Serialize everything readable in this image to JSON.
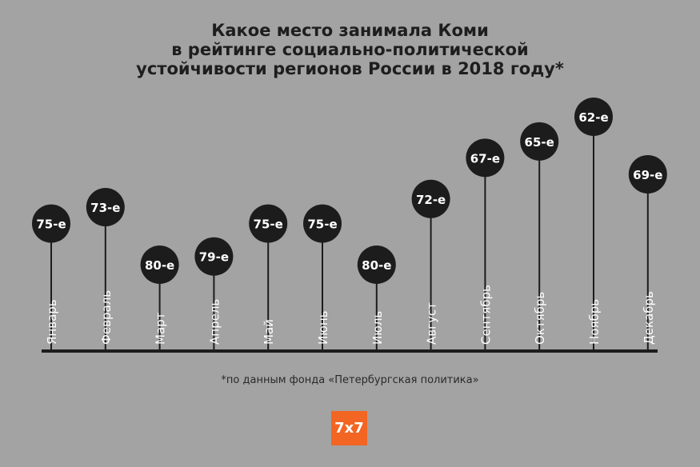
{
  "title_lines": [
    "Какое место занимала Коми",
    "в рейтинге социально-политической",
    "устойчивости регионов России в 2018 году*"
  ],
  "footnote": "*по данным фонда «Петербургская политика»",
  "logo": "7x7",
  "colors": {
    "background": "#a3a3a3",
    "marker": "#1c1c1c",
    "marker_text": "#ffffff",
    "axis": "#1c1c1c",
    "logo": "#f26522"
  },
  "chart_data": {
    "type": "lollipop",
    "categories": [
      "Январь",
      "Февраль",
      "Март",
      "Апрель",
      "Май",
      "Июнь",
      "Июль",
      "Август",
      "Сентябрь",
      "Октябрь",
      "Ноябрь",
      "Декабрь"
    ],
    "values": [
      75,
      73,
      80,
      79,
      75,
      75,
      80,
      72,
      67,
      65,
      62,
      69
    ],
    "labels": [
      "75-е",
      "73-е",
      "80-е",
      "79-е",
      "75-е",
      "75-е",
      "80-е",
      "72-е",
      "67-е",
      "65-е",
      "62-е",
      "69-е"
    ],
    "ylim": [
      62,
      80
    ],
    "y_inverted": true,
    "grid": false
  }
}
